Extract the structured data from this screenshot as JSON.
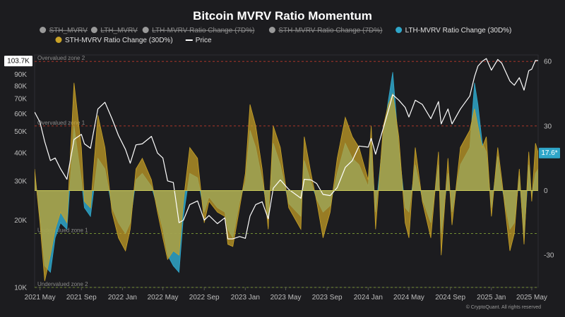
{
  "chart_data": {
    "type": "area",
    "title": "Bitcoin MVRV Ratio Momentum",
    "credit": "© CryptoQuant. All rights reserved",
    "legend": {
      "placement": "top",
      "items": [
        {
          "name": "STH_MVRV",
          "hidden": true,
          "marker": "dot",
          "color": "#9a9a9a"
        },
        {
          "name": "LTH_MVRV",
          "hidden": true,
          "marker": "dot",
          "color": "#9a9a9a"
        },
        {
          "name": "LTH-MVRV Ratio Change (7D%)",
          "hidden": true,
          "marker": "dot",
          "color": "#9a9a9a"
        },
        {
          "name": "STH-MVRV Ratio Change (7D%)",
          "hidden": true,
          "marker": "dot",
          "color": "#9a9a9a"
        },
        {
          "name": "LTH-MVRV Ratio Change (30D%)",
          "hidden": false,
          "marker": "dot",
          "color": "#2fa6c9"
        },
        {
          "name": "STH-MVRV Ratio Change (30D%)",
          "hidden": false,
          "marker": "dot",
          "color": "#c9a227"
        },
        {
          "name": "Price",
          "hidden": false,
          "marker": "line",
          "color": "#ffffff"
        }
      ]
    },
    "x_ticks": [
      "2021 May",
      "2021 Sep",
      "2022 Jan",
      "2022 May",
      "2022 Sep",
      "2023 Jan",
      "2023 May",
      "2023 Sep",
      "2024 Jan",
      "2024 May",
      "2024 Sep",
      "2025 Jan",
      "2025 May"
    ],
    "x_range": [
      "2021-04-15",
      "2025-05-20"
    ],
    "y_left": {
      "scale": "log",
      "ticks": [
        10000,
        20000,
        30000,
        40000,
        50000,
        60000,
        70000,
        80000,
        90000
      ],
      "tick_labels": [
        "10K",
        "20K",
        "30K",
        "40K",
        "50K",
        "60K",
        "70K",
        "80K",
        "90K"
      ],
      "range": [
        10000,
        110000
      ]
    },
    "y_right": {
      "ticks": [
        60,
        30,
        0,
        -30
      ],
      "tick_labels": [
        "60",
        "30",
        "0",
        "-30"
      ],
      "range": [
        -45,
        63
      ]
    },
    "zones": [
      {
        "label": "Overvalued zone 2",
        "value": 60,
        "color": "#c0392b"
      },
      {
        "label": "Overvalued zone 1",
        "value": 30,
        "color": "#c0392b"
      },
      {
        "label": "Undervalued zone 1",
        "value": -20,
        "color": "#8fb33a"
      },
      {
        "label": "Undervalued zone 2",
        "value": -45,
        "color": "#8fb33a"
      }
    ],
    "badges": {
      "price": "103.7K",
      "momentum": "17.6*"
    },
    "series": [
      {
        "name": "Price",
        "axis": "left",
        "color": "#ffffff",
        "x": [
          "2021-04-15",
          "2021-05-01",
          "2021-05-15",
          "2021-06-01",
          "2021-06-15",
          "2021-07-01",
          "2021-07-20",
          "2021-08-10",
          "2021-09-01",
          "2021-09-10",
          "2021-09-28",
          "2021-10-20",
          "2021-11-10",
          "2021-12-01",
          "2021-12-20",
          "2022-01-10",
          "2022-01-24",
          "2022-02-10",
          "2022-03-01",
          "2022-03-28",
          "2022-04-15",
          "2022-05-01",
          "2022-05-15",
          "2022-06-01",
          "2022-06-18",
          "2022-07-01",
          "2022-07-20",
          "2022-08-12",
          "2022-09-01",
          "2022-09-15",
          "2022-10-10",
          "2022-11-01",
          "2022-11-10",
          "2022-11-25",
          "2022-12-15",
          "2023-01-01",
          "2023-01-15",
          "2023-02-01",
          "2023-02-20",
          "2023-03-10",
          "2023-03-25",
          "2023-04-15",
          "2023-05-10",
          "2023-06-15",
          "2023-06-25",
          "2023-07-15",
          "2023-08-01",
          "2023-08-20",
          "2023-09-10",
          "2023-10-01",
          "2023-10-25",
          "2023-11-15",
          "2023-12-05",
          "2024-01-01",
          "2024-01-10",
          "2024-01-23",
          "2024-02-15",
          "2024-03-01",
          "2024-03-14",
          "2024-04-01",
          "2024-04-20",
          "2024-05-01",
          "2024-05-20",
          "2024-06-10",
          "2024-07-05",
          "2024-07-28",
          "2024-08-05",
          "2024-08-25",
          "2024-09-06",
          "2024-10-01",
          "2024-10-29",
          "2024-11-12",
          "2024-11-22",
          "2024-12-05",
          "2024-12-17",
          "2025-01-01",
          "2025-01-20",
          "2025-02-01",
          "2025-02-25",
          "2025-03-10",
          "2025-03-25",
          "2025-04-08",
          "2025-04-22",
          "2025-05-01",
          "2025-05-12",
          "2025-05-20"
        ],
        "values": [
          61000,
          55000,
          45000,
          37000,
          38000,
          34000,
          30500,
          46000,
          48500,
          44000,
          42000,
          63000,
          67500,
          57000,
          48000,
          41500,
          36000,
          43500,
          44000,
          47500,
          40000,
          38000,
          30000,
          29500,
          19500,
          20000,
          23500,
          24400,
          20000,
          21000,
          19300,
          20500,
          16500,
          16500,
          16900,
          16600,
          20900,
          23500,
          24200,
          20300,
          27800,
          30300,
          27500,
          25100,
          30500,
          30300,
          29200,
          26100,
          25800,
          28000,
          34500,
          37000,
          43000,
          42500,
          46500,
          39500,
          51800,
          62000,
          73000,
          69000,
          64000,
          58000,
          69000,
          66000,
          57000,
          68000,
          54000,
          63000,
          54000,
          63000,
          72000,
          88000,
          98000,
          103000,
          106000,
          94000,
          105000,
          101000,
          84000,
          80500,
          87000,
          76500,
          93500,
          95000,
          104000,
          103700
        ]
      },
      {
        "name": "LTH-MVRV Ratio Change (30D%)",
        "axis": "right",
        "color": "#2fa6c9",
        "x": [
          "2021-04-15",
          "2021-05-01",
          "2021-05-15",
          "2021-06-01",
          "2021-06-15",
          "2021-07-01",
          "2021-07-20",
          "2021-08-10",
          "2021-09-01",
          "2021-09-10",
          "2021-09-28",
          "2021-10-20",
          "2021-11-10",
          "2021-12-01",
          "2021-12-20",
          "2022-01-10",
          "2022-01-24",
          "2022-02-10",
          "2022-03-01",
          "2022-03-28",
          "2022-04-15",
          "2022-05-01",
          "2022-05-15",
          "2022-06-01",
          "2022-06-18",
          "2022-07-01",
          "2022-07-20",
          "2022-08-12",
          "2022-09-01",
          "2022-09-15",
          "2022-10-10",
          "2022-11-01",
          "2022-11-10",
          "2022-11-25",
          "2022-12-15",
          "2023-01-01",
          "2023-01-15",
          "2023-02-01",
          "2023-02-20",
          "2023-03-10",
          "2023-03-25",
          "2023-04-15",
          "2023-05-10",
          "2023-06-15",
          "2023-06-25",
          "2023-07-15",
          "2023-08-01",
          "2023-08-20",
          "2023-09-10",
          "2023-10-01",
          "2023-10-25",
          "2023-11-15",
          "2023-12-05",
          "2024-01-01",
          "2024-01-10",
          "2024-01-23",
          "2024-02-15",
          "2024-03-01",
          "2024-03-14",
          "2024-04-01",
          "2024-04-20",
          "2024-05-01",
          "2024-05-20",
          "2024-06-10",
          "2024-07-05",
          "2024-07-28",
          "2024-08-05",
          "2024-08-25",
          "2024-09-06",
          "2024-10-01",
          "2024-10-29",
          "2024-11-12",
          "2024-11-22",
          "2024-12-05",
          "2024-12-17",
          "2025-01-01",
          "2025-01-20",
          "2025-02-01",
          "2025-02-25",
          "2025-03-10",
          "2025-03-25",
          "2025-04-08",
          "2025-04-22",
          "2025-05-01",
          "2025-05-12",
          "2025-05-20"
        ],
        "values": [
          8,
          -12,
          -35,
          -38,
          -22,
          -15,
          -18,
          30,
          5,
          -8,
          -12,
          15,
          10,
          -8,
          -15,
          -20,
          -15,
          5,
          8,
          2,
          -8,
          -18,
          -30,
          -35,
          -38,
          -12,
          8,
          6,
          -10,
          -3,
          -8,
          -10,
          -18,
          -22,
          -5,
          4,
          28,
          20,
          5,
          -12,
          22,
          12,
          -6,
          -12,
          14,
          4,
          -4,
          -10,
          -7,
          8,
          22,
          15,
          12,
          2,
          22,
          -10,
          26,
          42,
          55,
          20,
          -8,
          -10,
          12,
          -4,
          -15,
          12,
          -20,
          8,
          -10,
          12,
          20,
          50,
          40,
          22,
          18,
          -8,
          16,
          2,
          -18,
          -15,
          7,
          -22,
          12,
          -3,
          8,
          10
        ]
      },
      {
        "name": "STH-MVRV Ratio Change (30D%)",
        "axis": "right",
        "color": "#c9a227",
        "x": [
          "2021-04-15",
          "2021-05-01",
          "2021-05-15",
          "2021-06-01",
          "2021-06-15",
          "2021-07-01",
          "2021-07-20",
          "2021-08-10",
          "2021-09-01",
          "2021-09-10",
          "2021-09-28",
          "2021-10-20",
          "2021-11-10",
          "2021-12-01",
          "2021-12-20",
          "2022-01-10",
          "2022-01-24",
          "2022-02-10",
          "2022-03-01",
          "2022-03-28",
          "2022-04-15",
          "2022-05-01",
          "2022-05-15",
          "2022-06-01",
          "2022-06-18",
          "2022-07-01",
          "2022-07-20",
          "2022-08-12",
          "2022-09-01",
          "2022-09-15",
          "2022-10-10",
          "2022-11-01",
          "2022-11-10",
          "2022-11-25",
          "2022-12-15",
          "2023-01-01",
          "2023-01-15",
          "2023-02-01",
          "2023-02-20",
          "2023-03-10",
          "2023-03-25",
          "2023-04-15",
          "2023-05-10",
          "2023-06-15",
          "2023-06-25",
          "2023-07-15",
          "2023-08-01",
          "2023-08-20",
          "2023-09-10",
          "2023-10-01",
          "2023-10-25",
          "2023-11-15",
          "2023-12-05",
          "2024-01-01",
          "2024-01-10",
          "2024-01-23",
          "2024-02-15",
          "2024-03-01",
          "2024-03-14",
          "2024-04-01",
          "2024-04-20",
          "2024-05-01",
          "2024-05-20",
          "2024-06-10",
          "2024-07-05",
          "2024-07-28",
          "2024-08-05",
          "2024-08-25",
          "2024-09-06",
          "2024-10-01",
          "2024-10-29",
          "2024-11-12",
          "2024-11-22",
          "2024-12-05",
          "2024-12-17",
          "2025-01-01",
          "2025-01-20",
          "2025-02-01",
          "2025-02-25",
          "2025-03-10",
          "2025-03-25",
          "2025-04-08",
          "2025-04-22",
          "2025-05-01",
          "2025-05-12",
          "2025-05-20"
        ],
        "values": [
          10,
          -15,
          -42,
          -30,
          -18,
          -10,
          -15,
          50,
          20,
          -5,
          -8,
          35,
          20,
          -10,
          -22,
          -28,
          -18,
          10,
          15,
          5,
          -10,
          -22,
          -32,
          -28,
          -30,
          -5,
          20,
          15,
          -15,
          -5,
          -10,
          -12,
          -25,
          -26,
          -8,
          8,
          40,
          30,
          10,
          -18,
          30,
          20,
          -8,
          -18,
          25,
          8,
          -5,
          -22,
          -10,
          15,
          34,
          25,
          20,
          5,
          30,
          -18,
          30,
          40,
          45,
          25,
          -15,
          -22,
          20,
          -5,
          -22,
          18,
          -30,
          15,
          -16,
          20,
          28,
          38,
          30,
          20,
          25,
          -12,
          20,
          5,
          -28,
          -20,
          10,
          -25,
          18,
          -5,
          22,
          17.6
        ]
      }
    ]
  }
}
